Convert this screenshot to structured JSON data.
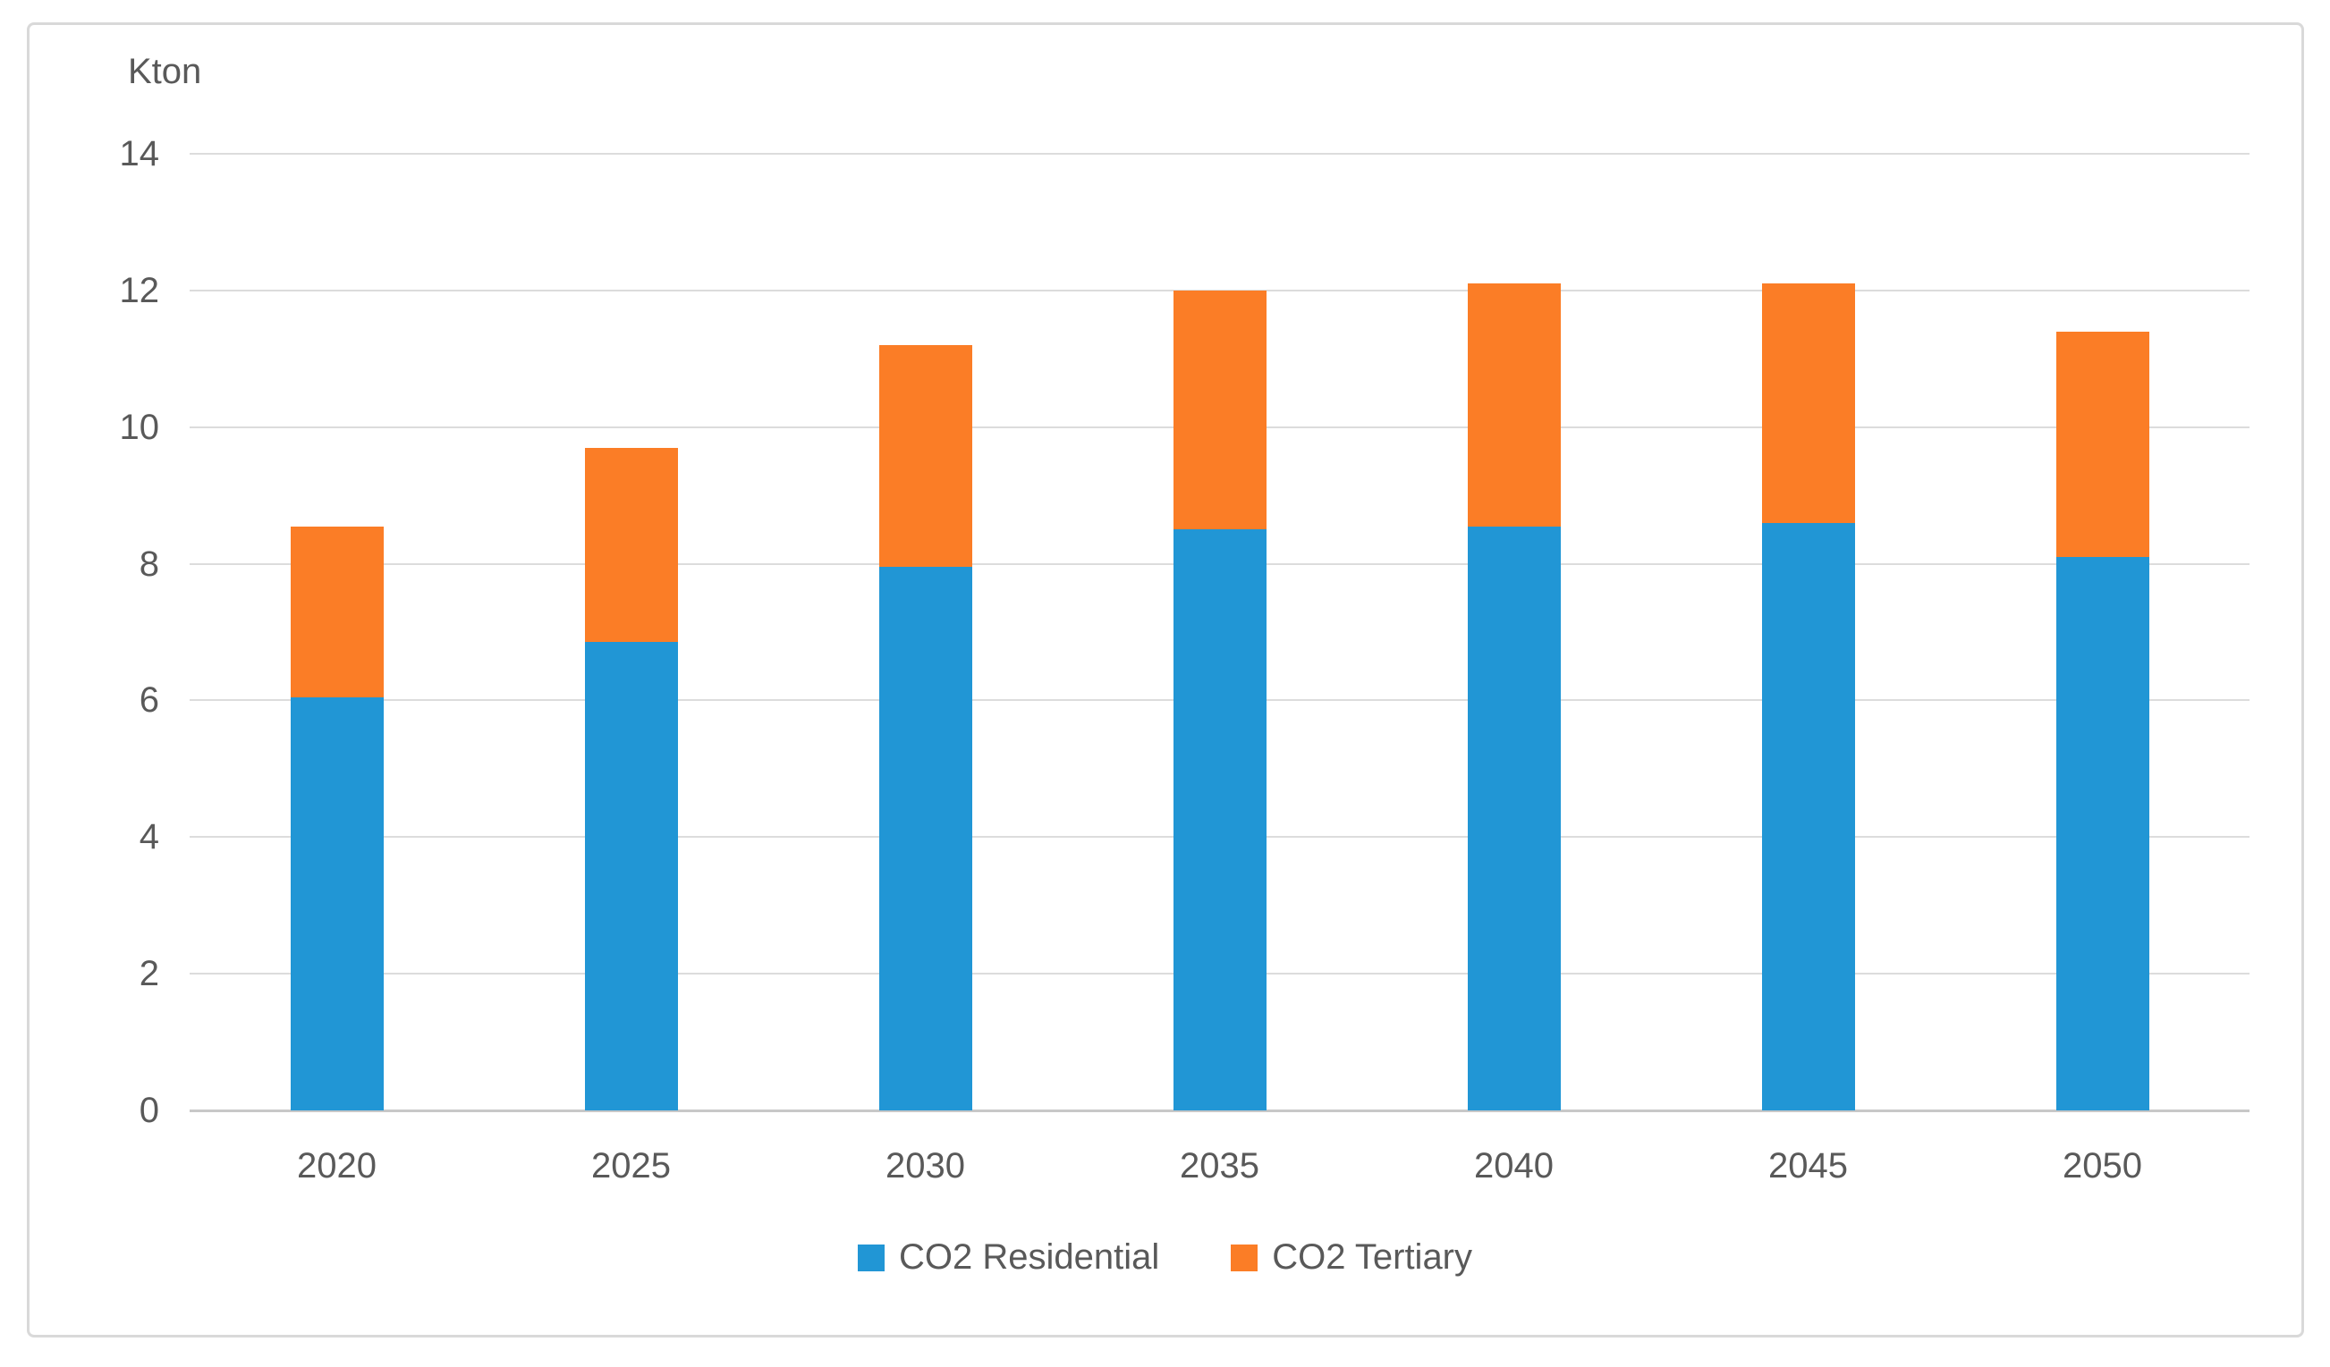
{
  "unit_label": "Kton",
  "colors": {
    "series_residential": "#2196D5",
    "series_tertiary": "#FB7D26",
    "text": "#595959",
    "gridline": "#DCDCDC",
    "axis_line": "#C8C8C8",
    "frame_border": "#D9D9D9",
    "background": "#FFFFFF"
  },
  "chart_data": {
    "type": "bar",
    "stacked": true,
    "title": "",
    "ylabel": "Kton",
    "xlabel": "",
    "categories": [
      "2020",
      "2025",
      "2030",
      "2035",
      "2040",
      "2045",
      "2050"
    ],
    "series": [
      {
        "name": "CO2 Residential",
        "color": "#2196D5",
        "values": [
          6.05,
          6.85,
          7.95,
          8.5,
          8.55,
          8.6,
          8.1
        ]
      },
      {
        "name": "CO2 Tertiary",
        "color": "#FB7D26",
        "values": [
          2.5,
          2.85,
          3.25,
          3.5,
          3.55,
          3.5,
          3.3
        ]
      }
    ],
    "stacked_totals": [
      8.55,
      9.7,
      11.2,
      12.0,
      12.1,
      12.1,
      11.4
    ],
    "ylim": [
      0,
      14
    ],
    "ytick_step": 2,
    "ytick_labels": [
      "0",
      "2",
      "4",
      "6",
      "8",
      "10",
      "12",
      "14"
    ],
    "grid": true,
    "legend_position": "bottom"
  }
}
